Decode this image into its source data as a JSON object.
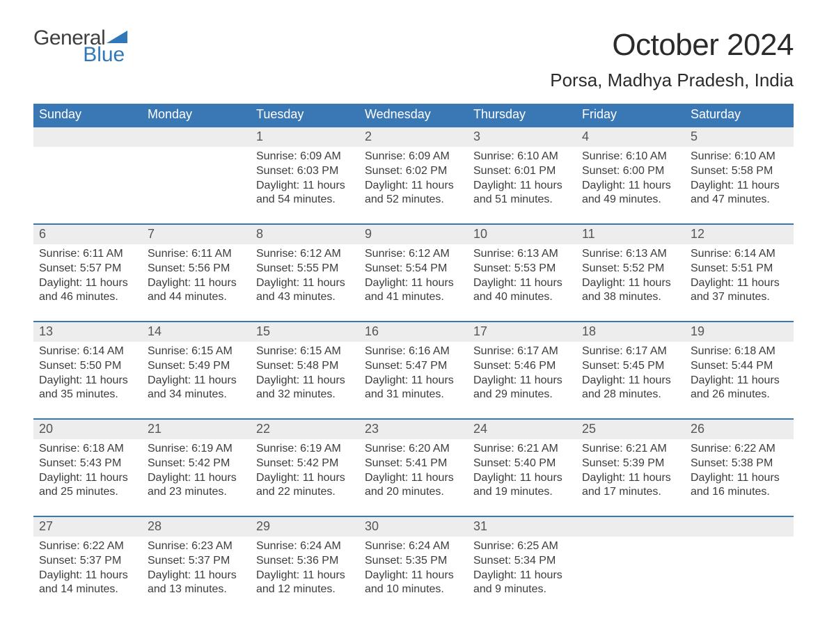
{
  "logo": {
    "general": "General",
    "blue": "Blue"
  },
  "title": "October 2024",
  "subtitle": "Porsa, Madhya Pradesh, India",
  "colors": {
    "header_bg": "#3a78b5",
    "header_text": "#ffffff",
    "daynum_bg": "#ededed",
    "rule": "#3a78b5",
    "text": "#3c3c3c",
    "logo_general": "#3f3f3f",
    "logo_blue": "#2f78ba"
  },
  "weekdays": [
    "Sunday",
    "Monday",
    "Tuesday",
    "Wednesday",
    "Thursday",
    "Friday",
    "Saturday"
  ],
  "weeks": [
    [
      {
        "day": "",
        "sunrise": "",
        "sunset": "",
        "daylight1": "",
        "daylight2": ""
      },
      {
        "day": "",
        "sunrise": "",
        "sunset": "",
        "daylight1": "",
        "daylight2": ""
      },
      {
        "day": "1",
        "sunrise": "Sunrise: 6:09 AM",
        "sunset": "Sunset: 6:03 PM",
        "daylight1": "Daylight: 11 hours",
        "daylight2": "and 54 minutes."
      },
      {
        "day": "2",
        "sunrise": "Sunrise: 6:09 AM",
        "sunset": "Sunset: 6:02 PM",
        "daylight1": "Daylight: 11 hours",
        "daylight2": "and 52 minutes."
      },
      {
        "day": "3",
        "sunrise": "Sunrise: 6:10 AM",
        "sunset": "Sunset: 6:01 PM",
        "daylight1": "Daylight: 11 hours",
        "daylight2": "and 51 minutes."
      },
      {
        "day": "4",
        "sunrise": "Sunrise: 6:10 AM",
        "sunset": "Sunset: 6:00 PM",
        "daylight1": "Daylight: 11 hours",
        "daylight2": "and 49 minutes."
      },
      {
        "day": "5",
        "sunrise": "Sunrise: 6:10 AM",
        "sunset": "Sunset: 5:58 PM",
        "daylight1": "Daylight: 11 hours",
        "daylight2": "and 47 minutes."
      }
    ],
    [
      {
        "day": "6",
        "sunrise": "Sunrise: 6:11 AM",
        "sunset": "Sunset: 5:57 PM",
        "daylight1": "Daylight: 11 hours",
        "daylight2": "and 46 minutes."
      },
      {
        "day": "7",
        "sunrise": "Sunrise: 6:11 AM",
        "sunset": "Sunset: 5:56 PM",
        "daylight1": "Daylight: 11 hours",
        "daylight2": "and 44 minutes."
      },
      {
        "day": "8",
        "sunrise": "Sunrise: 6:12 AM",
        "sunset": "Sunset: 5:55 PM",
        "daylight1": "Daylight: 11 hours",
        "daylight2": "and 43 minutes."
      },
      {
        "day": "9",
        "sunrise": "Sunrise: 6:12 AM",
        "sunset": "Sunset: 5:54 PM",
        "daylight1": "Daylight: 11 hours",
        "daylight2": "and 41 minutes."
      },
      {
        "day": "10",
        "sunrise": "Sunrise: 6:13 AM",
        "sunset": "Sunset: 5:53 PM",
        "daylight1": "Daylight: 11 hours",
        "daylight2": "and 40 minutes."
      },
      {
        "day": "11",
        "sunrise": "Sunrise: 6:13 AM",
        "sunset": "Sunset: 5:52 PM",
        "daylight1": "Daylight: 11 hours",
        "daylight2": "and 38 minutes."
      },
      {
        "day": "12",
        "sunrise": "Sunrise: 6:14 AM",
        "sunset": "Sunset: 5:51 PM",
        "daylight1": "Daylight: 11 hours",
        "daylight2": "and 37 minutes."
      }
    ],
    [
      {
        "day": "13",
        "sunrise": "Sunrise: 6:14 AM",
        "sunset": "Sunset: 5:50 PM",
        "daylight1": "Daylight: 11 hours",
        "daylight2": "and 35 minutes."
      },
      {
        "day": "14",
        "sunrise": "Sunrise: 6:15 AM",
        "sunset": "Sunset: 5:49 PM",
        "daylight1": "Daylight: 11 hours",
        "daylight2": "and 34 minutes."
      },
      {
        "day": "15",
        "sunrise": "Sunrise: 6:15 AM",
        "sunset": "Sunset: 5:48 PM",
        "daylight1": "Daylight: 11 hours",
        "daylight2": "and 32 minutes."
      },
      {
        "day": "16",
        "sunrise": "Sunrise: 6:16 AM",
        "sunset": "Sunset: 5:47 PM",
        "daylight1": "Daylight: 11 hours",
        "daylight2": "and 31 minutes."
      },
      {
        "day": "17",
        "sunrise": "Sunrise: 6:17 AM",
        "sunset": "Sunset: 5:46 PM",
        "daylight1": "Daylight: 11 hours",
        "daylight2": "and 29 minutes."
      },
      {
        "day": "18",
        "sunrise": "Sunrise: 6:17 AM",
        "sunset": "Sunset: 5:45 PM",
        "daylight1": "Daylight: 11 hours",
        "daylight2": "and 28 minutes."
      },
      {
        "day": "19",
        "sunrise": "Sunrise: 6:18 AM",
        "sunset": "Sunset: 5:44 PM",
        "daylight1": "Daylight: 11 hours",
        "daylight2": "and 26 minutes."
      }
    ],
    [
      {
        "day": "20",
        "sunrise": "Sunrise: 6:18 AM",
        "sunset": "Sunset: 5:43 PM",
        "daylight1": "Daylight: 11 hours",
        "daylight2": "and 25 minutes."
      },
      {
        "day": "21",
        "sunrise": "Sunrise: 6:19 AM",
        "sunset": "Sunset: 5:42 PM",
        "daylight1": "Daylight: 11 hours",
        "daylight2": "and 23 minutes."
      },
      {
        "day": "22",
        "sunrise": "Sunrise: 6:19 AM",
        "sunset": "Sunset: 5:42 PM",
        "daylight1": "Daylight: 11 hours",
        "daylight2": "and 22 minutes."
      },
      {
        "day": "23",
        "sunrise": "Sunrise: 6:20 AM",
        "sunset": "Sunset: 5:41 PM",
        "daylight1": "Daylight: 11 hours",
        "daylight2": "and 20 minutes."
      },
      {
        "day": "24",
        "sunrise": "Sunrise: 6:21 AM",
        "sunset": "Sunset: 5:40 PM",
        "daylight1": "Daylight: 11 hours",
        "daylight2": "and 19 minutes."
      },
      {
        "day": "25",
        "sunrise": "Sunrise: 6:21 AM",
        "sunset": "Sunset: 5:39 PM",
        "daylight1": "Daylight: 11 hours",
        "daylight2": "and 17 minutes."
      },
      {
        "day": "26",
        "sunrise": "Sunrise: 6:22 AM",
        "sunset": "Sunset: 5:38 PM",
        "daylight1": "Daylight: 11 hours",
        "daylight2": "and 16 minutes."
      }
    ],
    [
      {
        "day": "27",
        "sunrise": "Sunrise: 6:22 AM",
        "sunset": "Sunset: 5:37 PM",
        "daylight1": "Daylight: 11 hours",
        "daylight2": "and 14 minutes."
      },
      {
        "day": "28",
        "sunrise": "Sunrise: 6:23 AM",
        "sunset": "Sunset: 5:37 PM",
        "daylight1": "Daylight: 11 hours",
        "daylight2": "and 13 minutes."
      },
      {
        "day": "29",
        "sunrise": "Sunrise: 6:24 AM",
        "sunset": "Sunset: 5:36 PM",
        "daylight1": "Daylight: 11 hours",
        "daylight2": "and 12 minutes."
      },
      {
        "day": "30",
        "sunrise": "Sunrise: 6:24 AM",
        "sunset": "Sunset: 5:35 PM",
        "daylight1": "Daylight: 11 hours",
        "daylight2": "and 10 minutes."
      },
      {
        "day": "31",
        "sunrise": "Sunrise: 6:25 AM",
        "sunset": "Sunset: 5:34 PM",
        "daylight1": "Daylight: 11 hours",
        "daylight2": "and 9 minutes."
      },
      {
        "day": "",
        "sunrise": "",
        "sunset": "",
        "daylight1": "",
        "daylight2": ""
      },
      {
        "day": "",
        "sunrise": "",
        "sunset": "",
        "daylight1": "",
        "daylight2": ""
      }
    ]
  ]
}
